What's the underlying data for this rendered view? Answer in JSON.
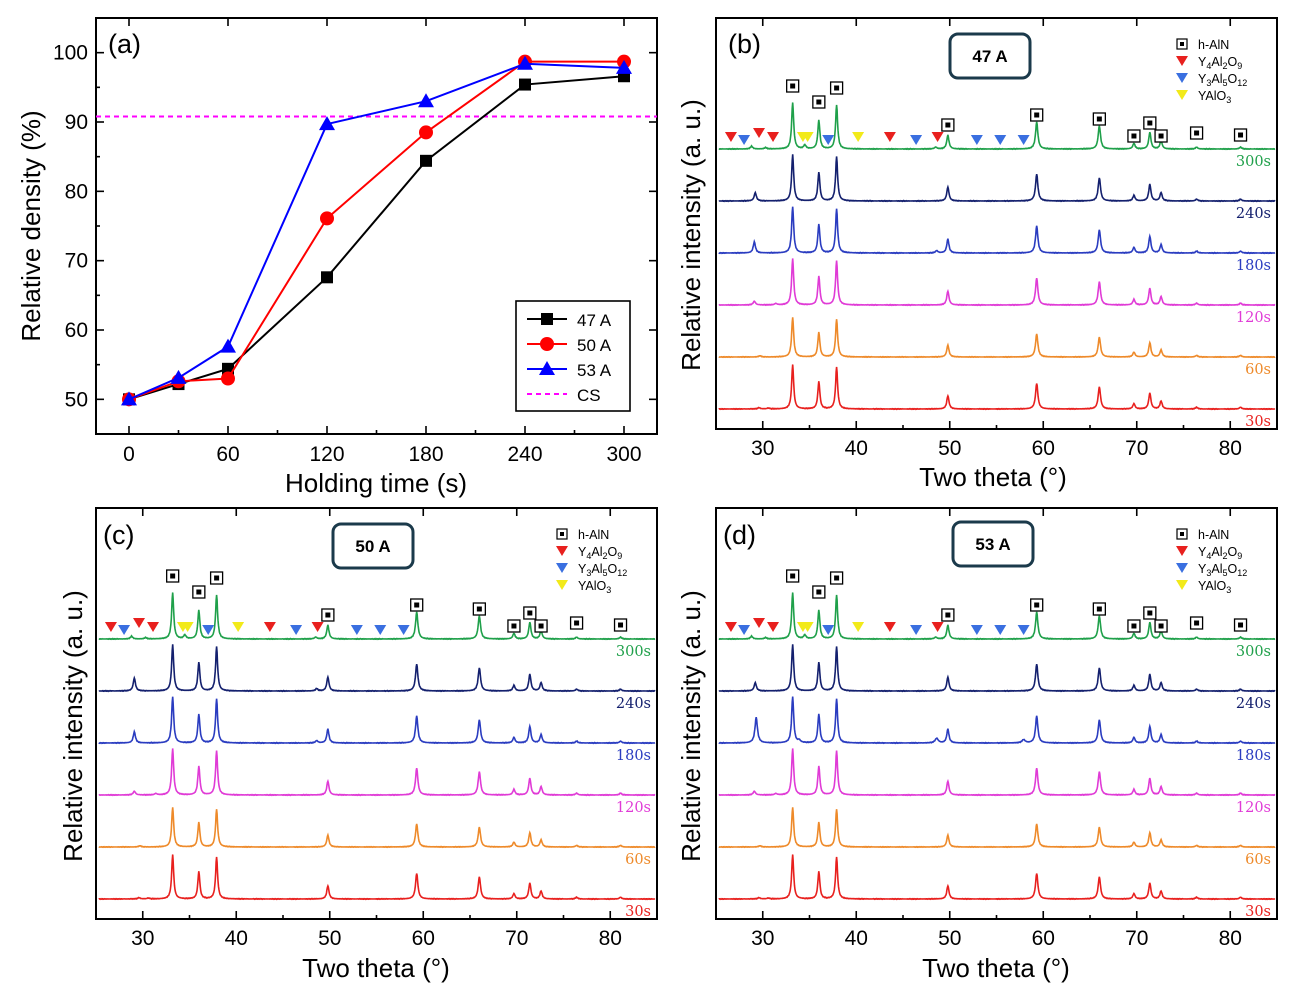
{
  "chart_data": [
    {
      "type": "line",
      "panel_label": "(a)",
      "xlabel": "Holding time (s)",
      "ylabel": "Relative density (%)",
      "xlim": [
        -20,
        320
      ],
      "ylim": [
        45,
        105
      ],
      "xticks": [
        0,
        60,
        120,
        180,
        240,
        300
      ],
      "yticks": [
        50,
        60,
        70,
        80,
        90,
        100
      ],
      "legend_position": "bottom-right",
      "series": [
        {
          "name": "47 A",
          "color": "#000000",
          "marker": "square",
          "x": [
            0,
            30,
            60,
            120,
            180,
            240,
            300
          ],
          "values": [
            50.0,
            52.2,
            54.4,
            67.6,
            84.4,
            95.4,
            96.6
          ]
        },
        {
          "name": "50 A",
          "color": "#ff0000",
          "marker": "circle",
          "x": [
            0,
            30,
            60,
            120,
            180,
            240,
            300
          ],
          "values": [
            50.0,
            52.6,
            53.0,
            76.1,
            88.5,
            98.7,
            98.7
          ]
        },
        {
          "name": "53 A",
          "color": "#0000ff",
          "marker": "triangle",
          "x": [
            0,
            30,
            60,
            120,
            180,
            240,
            300
          ],
          "values": [
            50.0,
            53.1,
            57.6,
            89.7,
            93.0,
            98.4,
            97.8
          ]
        }
      ],
      "reference_line": {
        "name": "CS",
        "value": 90.8,
        "color": "#ff00ff",
        "style": "dashed"
      }
    },
    {
      "type": "line",
      "panel_label": "(b)",
      "current_label": "47 A",
      "xlabel": "Two theta (°)",
      "ylabel": "Relative intensity (a. u.)",
      "xlim": [
        25,
        85
      ],
      "xticks": [
        30,
        40,
        50,
        60,
        70,
        80
      ],
      "legend": [
        {
          "name": "h-AlN",
          "marker": "boxed-square"
        },
        {
          "name": "Y4Al2O9",
          "base": "Y",
          "sub1": "4",
          "mid1": "Al",
          "sub2": "2",
          "mid2": "O",
          "sub3": "9",
          "marker": "triangle-down",
          "color": "#e8201e"
        },
        {
          "name": "Y3Al5O12",
          "base": "Y",
          "sub1": "3",
          "mid1": "Al",
          "sub2": "5",
          "mid2": "O",
          "sub3": "12",
          "marker": "triangle-down",
          "color": "#3a6fe0"
        },
        {
          "name": "YAlO3",
          "base": "YAlO",
          "sub1": "3",
          "marker": "triangle-down",
          "color": "#f2ea1a"
        }
      ],
      "series": [
        {
          "name": "30s",
          "color": "#e8201e"
        },
        {
          "name": "60s",
          "color": "#ee8a2a"
        },
        {
          "name": "120s",
          "color": "#e03bd6"
        },
        {
          "name": "180s",
          "color": "#2a3cc0"
        },
        {
          "name": "240s",
          "color": "#14206e"
        },
        {
          "name": "300s",
          "color": "#1fa04a"
        }
      ],
      "aln_peaks": [
        33.2,
        36.0,
        37.9,
        49.8,
        59.3,
        66.0,
        69.7,
        71.4,
        72.6,
        76.4,
        81.1
      ],
      "y4al2o9_peaks": [
        26.6,
        29.6,
        31.1,
        43.6,
        48.7
      ],
      "y3al5o12_peaks": [
        28.0,
        37.0,
        46.4,
        52.9,
        55.4,
        57.9
      ],
      "yalo3_peaks": [
        34.3,
        34.8,
        40.2
      ]
    },
    {
      "type": "line",
      "panel_label": "(c)",
      "current_label": "50 A",
      "xlabel": "Two theta (°)",
      "ylabel": "Relative intensity (a. u.)",
      "xlim": [
        25,
        85
      ],
      "xticks": [
        30,
        40,
        50,
        60,
        70,
        80
      ],
      "legend": [
        {
          "name": "h-AlN",
          "marker": "boxed-square"
        },
        {
          "name": "Y4Al2O9",
          "base": "Y",
          "sub1": "4",
          "mid1": "Al",
          "sub2": "2",
          "mid2": "O",
          "sub3": "9",
          "marker": "triangle-down",
          "color": "#e8201e"
        },
        {
          "name": "Y3Al5O12",
          "base": "Y",
          "sub1": "3",
          "mid1": "Al",
          "sub2": "5",
          "mid2": "O",
          "sub3": "12",
          "marker": "triangle-down",
          "color": "#3a6fe0"
        },
        {
          "name": "YAlO3",
          "base": "YAlO",
          "sub1": "3",
          "marker": "triangle-down",
          "color": "#f2ea1a"
        }
      ],
      "series": [
        {
          "name": "30s",
          "color": "#e8201e"
        },
        {
          "name": "60s",
          "color": "#ee8a2a"
        },
        {
          "name": "120s",
          "color": "#e03bd6"
        },
        {
          "name": "180s",
          "color": "#2a3cc0"
        },
        {
          "name": "240s",
          "color": "#14206e"
        },
        {
          "name": "300s",
          "color": "#1fa04a"
        }
      ],
      "aln_peaks": [
        33.2,
        36.0,
        37.9,
        49.8,
        59.3,
        66.0,
        69.7,
        71.4,
        72.6,
        76.4,
        81.1
      ],
      "y4al2o9_peaks": [
        26.6,
        29.6,
        31.1,
        43.6,
        48.7
      ],
      "y3al5o12_peaks": [
        28.0,
        37.0,
        46.4,
        52.9,
        55.4,
        57.9
      ],
      "yalo3_peaks": [
        34.3,
        34.8,
        40.2
      ]
    },
    {
      "type": "line",
      "panel_label": "(d)",
      "current_label": "53 A",
      "xlabel": "Two theta (°)",
      "ylabel": "Relative intensity (a. u.)",
      "xlim": [
        25,
        85
      ],
      "xticks": [
        30,
        40,
        50,
        60,
        70,
        80
      ],
      "legend": [
        {
          "name": "h-AlN",
          "marker": "boxed-square"
        },
        {
          "name": "Y4Al2O9",
          "base": "Y",
          "sub1": "4",
          "mid1": "Al",
          "sub2": "2",
          "mid2": "O",
          "sub3": "9",
          "marker": "triangle-down",
          "color": "#e8201e"
        },
        {
          "name": "Y3Al5O12",
          "base": "Y",
          "sub1": "3",
          "mid1": "Al",
          "sub2": "5",
          "mid2": "O",
          "sub3": "12",
          "marker": "triangle-down",
          "color": "#3a6fe0"
        },
        {
          "name": "YAlO3",
          "base": "YAlO",
          "sub1": "3",
          "marker": "triangle-down",
          "color": "#f2ea1a"
        }
      ],
      "series": [
        {
          "name": "30s",
          "color": "#e8201e"
        },
        {
          "name": "60s",
          "color": "#ee8a2a"
        },
        {
          "name": "120s",
          "color": "#e03bd6"
        },
        {
          "name": "180s",
          "color": "#2a3cc0"
        },
        {
          "name": "240s",
          "color": "#14206e"
        },
        {
          "name": "300s",
          "color": "#1fa04a"
        }
      ],
      "aln_peaks": [
        33.2,
        36.0,
        37.9,
        49.8,
        59.3,
        66.0,
        69.7,
        71.4,
        72.6,
        76.4,
        81.1
      ],
      "y4al2o9_peaks": [
        26.6,
        29.6,
        31.1,
        43.6,
        48.7
      ],
      "y3al5o12_peaks": [
        28.0,
        37.0,
        46.4,
        52.9,
        55.4,
        57.9
      ],
      "yalo3_peaks": [
        34.3,
        34.8,
        40.2
      ]
    }
  ]
}
